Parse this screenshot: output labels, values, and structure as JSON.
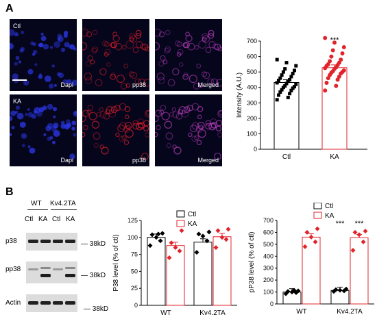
{
  "panel_a": {
    "letter": "A",
    "rows": [
      {
        "condition": "Ctl",
        "channels": [
          "Dapi",
          "pp38",
          "Merged"
        ]
      },
      {
        "condition": "KA",
        "channels": [
          "Dapi",
          "pp38",
          "Merged"
        ]
      }
    ]
  },
  "panel_b": {
    "letter": "B",
    "blot": {
      "genotypes": [
        "WT",
        "Kv4.2TA"
      ],
      "conditions": [
        "Ctl",
        "KA",
        "Ctl",
        "KA"
      ],
      "rows": [
        {
          "label": "p38",
          "kd": "38kD"
        },
        {
          "label": "pp38",
          "kd": "38kD"
        },
        {
          "label": "Actin",
          "kd": "38kD"
        }
      ]
    }
  },
  "colors": {
    "ctl": "#000000",
    "ka": "#e0242b",
    "dapi": "#2a35e0",
    "pp38": "#e0202a",
    "merged": "#c040c0"
  },
  "chart_data": [
    {
      "type": "bar",
      "categories": [
        "Ctl",
        "KA"
      ],
      "values": [
        432,
        528
      ],
      "ylabel": "Intensity (A.U.)",
      "ylim": [
        0,
        700
      ],
      "yticks": [
        0,
        100,
        200,
        300,
        400,
        500,
        600,
        700
      ],
      "significance": [
        "",
        "***"
      ],
      "points": [
        [
          320,
          335,
          350,
          360,
          370,
          380,
          385,
          395,
          400,
          405,
          410,
          420,
          425,
          430,
          440,
          445,
          450,
          460,
          470,
          480,
          490,
          500,
          510,
          520,
          540,
          560,
          580
        ],
        [
          380,
          410,
          430,
          450,
          460,
          470,
          480,
          490,
          495,
          500,
          505,
          510,
          520,
          525,
          530,
          540,
          545,
          550,
          560,
          570,
          580,
          600,
          620,
          640,
          660,
          690,
          720
        ]
      ]
    },
    {
      "type": "bar",
      "categories": [
        "WT",
        "Kv4.2TA"
      ],
      "series": [
        {
          "name": "Ctl",
          "values": [
            100,
            93
          ]
        },
        {
          "name": "KA",
          "values": [
            88,
            101
          ]
        }
      ],
      "ylabel": "P38 level (% of ctl)",
      "ylim": [
        0,
        125
      ],
      "yticks": [
        0,
        25,
        50,
        75,
        100,
        125
      ],
      "legend": "top-right",
      "points": [
        [
          [
            88,
            95,
            100,
            104,
            106,
            105
          ],
          [
            78,
            95,
            102,
            105,
            108
          ]
        ],
        [
          [
            70,
            80,
            85,
            92,
            110
          ],
          [
            85,
            97,
            100,
            110,
            112
          ]
        ]
      ]
    },
    {
      "type": "bar",
      "categories": [
        "WT",
        "Kv4.2TA"
      ],
      "series": [
        {
          "name": "Ctl",
          "values": [
            100,
            113
          ]
        },
        {
          "name": "KA",
          "values": [
            560,
            555
          ]
        }
      ],
      "ylabel": "pP38 level (% of ctl)",
      "ylim": [
        0,
        700
      ],
      "yticks": [
        0,
        100,
        200,
        300,
        400,
        500,
        600,
        700
      ],
      "legend": "top-left",
      "significance": [
        [
          "",
          "***"
        ],
        [
          "",
          "***"
        ]
      ],
      "points": [
        [
          [
            85,
            95,
            100,
            105,
            110,
            115
          ],
          [
            105,
            110,
            115,
            120,
            125
          ]
        ],
        [
          [
            480,
            520,
            560,
            600,
            630
          ],
          [
            450,
            520,
            580,
            600,
            610
          ]
        ]
      ]
    }
  ]
}
